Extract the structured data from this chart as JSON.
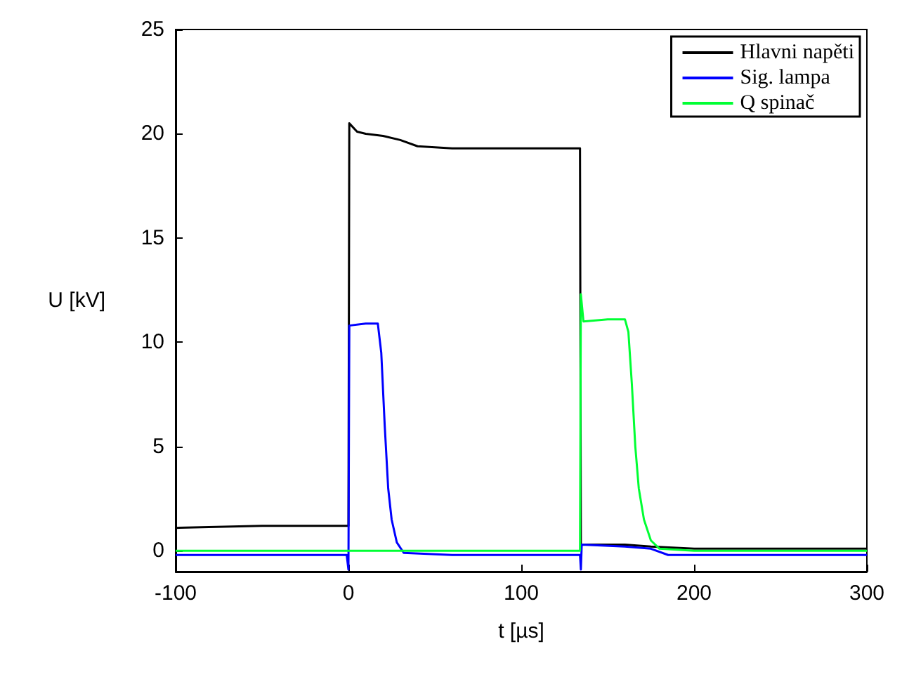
{
  "chart_data": {
    "type": "line",
    "xlabel": "t [µs]",
    "ylabel": "U [kV]",
    "xlim": [
      -100,
      300
    ],
    "ylim": [
      -1,
      25
    ],
    "xticks": [
      -100,
      0,
      100,
      200,
      300
    ],
    "yticks": [
      0,
      5,
      10,
      15,
      20,
      25
    ],
    "grid": false,
    "legend": "top right",
    "marker": "none",
    "line_style": "solid",
    "series": [
      {
        "name": "Hlavni napěti",
        "color": "#000000",
        "x": [
          -100,
          -50,
          -1,
          0,
          0.5,
          5,
          10,
          20,
          30,
          40,
          60,
          80,
          100,
          120,
          134,
          134.5,
          150,
          160,
          175,
          200,
          250,
          300
        ],
        "values": [
          1.1,
          1.2,
          1.2,
          1.2,
          20.5,
          20.1,
          20.0,
          19.9,
          19.7,
          19.4,
          19.3,
          19.3,
          19.3,
          19.3,
          19.3,
          0.3,
          0.3,
          0.3,
          0.2,
          0.1,
          0.1,
          0.1
        ]
      },
      {
        "name": "Sig. lampa",
        "color": "#0000ff",
        "x": [
          -100,
          -1,
          0,
          0.5,
          1,
          10,
          17,
          19,
          21,
          23,
          25,
          28,
          32,
          60,
          100,
          134,
          134.5,
          135,
          160,
          175,
          185,
          250,
          300
        ],
        "values": [
          -0.2,
          -0.2,
          -0.9,
          10.8,
          10.8,
          10.9,
          10.9,
          9.5,
          6,
          3,
          1.5,
          0.4,
          -0.1,
          -0.2,
          -0.2,
          -0.2,
          -0.9,
          0.3,
          0.2,
          0.1,
          -0.2,
          -0.2,
          -0.2
        ]
      },
      {
        "name": "Q spinač",
        "color": "#00ff33",
        "x": [
          -100,
          0,
          50,
          100,
          134,
          134.5,
          136,
          150,
          160,
          162,
          164,
          166,
          168,
          171,
          175,
          180,
          200,
          250,
          300
        ],
        "values": [
          0,
          0,
          0,
          0,
          0,
          12.3,
          11,
          11.1,
          11.1,
          10.5,
          8,
          5,
          3,
          1.5,
          0.5,
          0.1,
          0,
          0,
          0
        ]
      }
    ]
  }
}
